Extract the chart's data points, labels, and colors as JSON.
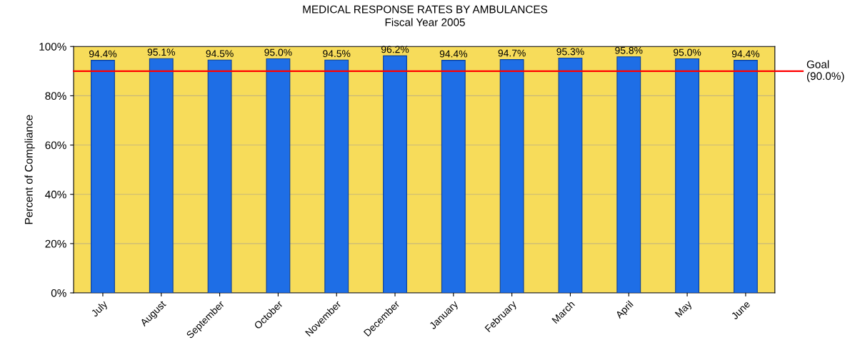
{
  "chart_data": {
    "type": "bar",
    "title": "MEDICAL RESPONSE RATES BY AMBULANCES",
    "subtitle": "Fiscal Year 2005",
    "ylabel": "Percent of Compliance",
    "categories": [
      "July",
      "August",
      "September",
      "October",
      "November",
      "December",
      "January",
      "February",
      "March",
      "April",
      "May",
      "June"
    ],
    "values": [
      94.4,
      95.1,
      94.5,
      95.0,
      94.5,
      96.2,
      94.4,
      94.7,
      95.3,
      95.8,
      95.0,
      94.4
    ],
    "value_labels": [
      "94.4%",
      "95.1%",
      "94.5%",
      "95.0%",
      "94.5%",
      "96.2%",
      "94.4%",
      "94.7%",
      "95.3%",
      "95.8%",
      "95.0%",
      "94.4%"
    ],
    "color": "#1e6ee6",
    "ylim": [
      0,
      100
    ],
    "yticks": [
      {
        "value": 0,
        "label": "0%"
      },
      {
        "value": 20,
        "label": "20%"
      },
      {
        "value": 40,
        "label": "40%"
      },
      {
        "value": 60,
        "label": "60%"
      },
      {
        "value": 80,
        "label": "80%"
      },
      {
        "value": 100,
        "label": "100%"
      }
    ],
    "ref_lines": [
      {
        "axis": "y",
        "value": 90,
        "label": "Goal\n(90.0%)",
        "color": "#ff0000"
      }
    ],
    "grid": "y",
    "legend": false
  }
}
